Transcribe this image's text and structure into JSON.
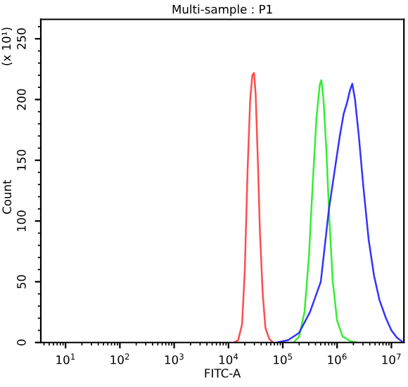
{
  "chart_data": {
    "type": "line",
    "title": "Multi-sample : P1",
    "xlabel": "FITC-A",
    "ylabel": "Count",
    "annotations": [
      "(x 10¹)"
    ],
    "log": "x",
    "grid": false,
    "marker": "none",
    "line_style": "solid",
    "xlim": [
      3.5,
      17000000
    ],
    "xticks": [
      {
        "value": 10,
        "label": "10$^{1}$"
      },
      {
        "value": 100,
        "label": "10$^{2}$"
      },
      {
        "value": 1000,
        "label": "10$^{3}$"
      },
      {
        "value": 10000,
        "label": "10$^{4}$"
      },
      {
        "value": 100000,
        "label": "10$^{5}$"
      },
      {
        "value": 1000000,
        "label": "10$^{6}$"
      },
      {
        "value": 10000000,
        "label": "10$^{7}$"
      }
    ],
    "ylim": [
      0,
      266
    ],
    "yticks": [
      0,
      50,
      100,
      150,
      200,
      250
    ],
    "series": [
      {
        "color": "#ff4d4d",
        "x": [
          12600,
          15100,
          17800,
          20000,
          22400,
          25100,
          27500,
          29500,
          31600,
          34700,
          38000,
          42700,
          47900,
          56200,
          66100
        ],
        "values": [
          0,
          2,
          15,
          60,
          140,
          200,
          220,
          222,
          205,
          150,
          90,
          40,
          12,
          3,
          0
        ]
      },
      {
        "color": "#33ee33",
        "x": [
          158000,
          200000,
          251000,
          302000,
          355000,
          417000,
          479000,
          513000,
          562000,
          631000,
          724000,
          832000,
          1000000,
          1259000,
          1778000,
          2239000
        ],
        "values": [
          0,
          5,
          25,
          70,
          130,
          185,
          212,
          216,
          200,
          160,
          100,
          50,
          18,
          5,
          1,
          0
        ]
      },
      {
        "color": "#3333ff",
        "x": [
          79400,
          126000,
          200000,
          316000,
          501000,
          708000,
          891000,
          1122000,
          1318000,
          1514000,
          1738000,
          1905000,
          2138000,
          2512000,
          3020000,
          3802000,
          4786000,
          6026000,
          7943000,
          10000000,
          12590000,
          16600000
        ],
        "values": [
          0,
          2,
          8,
          25,
          50,
          110,
          140,
          170,
          188,
          197,
          208,
          213,
          200,
          170,
          130,
          85,
          55,
          35,
          20,
          10,
          4,
          0
        ]
      }
    ]
  }
}
